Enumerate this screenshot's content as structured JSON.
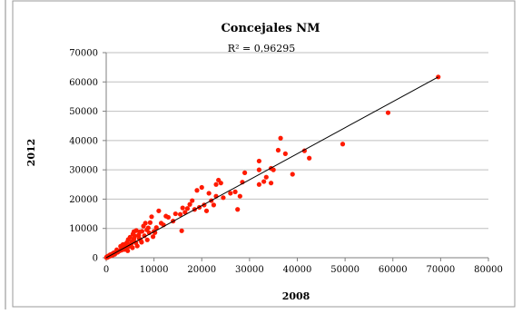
{
  "chart_data": {
    "type": "scatter",
    "title": "Concejales NM",
    "annotation": "R² = 0,96295",
    "xlabel": "2008",
    "ylabel": "2012",
    "xlim": [
      0,
      80000
    ],
    "ylim": [
      0,
      70000
    ],
    "x_ticks": [
      0,
      10000,
      20000,
      30000,
      40000,
      50000,
      60000,
      70000,
      80000
    ],
    "y_ticks": [
      0,
      10000,
      20000,
      30000,
      40000,
      50000,
      60000,
      70000
    ],
    "x_tick_labels": [
      "0",
      "10000",
      "20000",
      "30000",
      "40000",
      "50000",
      "60000",
      "70000",
      "80000"
    ],
    "y_tick_labels": [
      "0",
      "10000",
      "20000",
      "30000",
      "40000",
      "50000",
      "60000",
      "70000"
    ],
    "grid": "horizontal",
    "legend": "none",
    "trendline": {
      "type": "linear",
      "x": [
        0,
        69500
      ],
      "y": [
        0,
        61700
      ]
    },
    "colors": {
      "points": "#ff1a00",
      "trendline": "#000000",
      "grid": "#bfbfbf",
      "frame": "#9a9a9a"
    },
    "series": [
      {
        "values": [
          [
            69500,
            61700
          ],
          [
            59000,
            49500
          ],
          [
            49500,
            38800
          ],
          [
            41500,
            36500
          ],
          [
            42500,
            34000
          ],
          [
            39000,
            28500
          ],
          [
            36500,
            40800
          ],
          [
            37500,
            35500
          ],
          [
            36000,
            36700
          ],
          [
            35000,
            30000
          ],
          [
            34500,
            30500
          ],
          [
            33500,
            27500
          ],
          [
            34500,
            25500
          ],
          [
            32000,
            30000
          ],
          [
            33000,
            26000
          ],
          [
            32000,
            25000
          ],
          [
            32000,
            33000
          ],
          [
            29000,
            29000
          ],
          [
            28500,
            25800
          ],
          [
            28000,
            21000
          ],
          [
            27000,
            22500
          ],
          [
            27500,
            16500
          ],
          [
            26000,
            22000
          ],
          [
            24000,
            25500
          ],
          [
            23500,
            26500
          ],
          [
            24500,
            20500
          ],
          [
            23000,
            25000
          ],
          [
            23000,
            21000
          ],
          [
            22000,
            19500
          ],
          [
            21500,
            22000
          ],
          [
            22500,
            18000
          ],
          [
            21000,
            16000
          ],
          [
            20000,
            24000
          ],
          [
            20500,
            18000
          ],
          [
            19500,
            17200
          ],
          [
            19000,
            23000
          ],
          [
            18500,
            16500
          ],
          [
            18000,
            19500
          ],
          [
            17500,
            18200
          ],
          [
            17000,
            16800
          ],
          [
            16500,
            15500
          ],
          [
            16000,
            17000
          ],
          [
            15500,
            14800
          ],
          [
            15800,
            9200
          ],
          [
            14500,
            15000
          ],
          [
            14000,
            12500
          ],
          [
            13000,
            13800
          ],
          [
            12500,
            14200
          ],
          [
            12000,
            11200
          ],
          [
            11500,
            11800
          ],
          [
            11000,
            16000
          ],
          [
            10500,
            10300
          ],
          [
            10000,
            9000
          ],
          [
            9500,
            14000
          ],
          [
            9200,
            12000
          ],
          [
            9000,
            8500
          ],
          [
            8800,
            10200
          ],
          [
            8500,
            9500
          ],
          [
            8200,
            11800
          ],
          [
            8000,
            7500
          ],
          [
            7800,
            10800
          ],
          [
            7500,
            9000
          ],
          [
            7200,
            6000
          ],
          [
            7000,
            8800
          ],
          [
            6800,
            7700
          ],
          [
            6500,
            4000
          ],
          [
            6300,
            9300
          ],
          [
            6000,
            7400
          ],
          [
            5800,
            6400
          ],
          [
            5600,
            8100
          ],
          [
            5400,
            5500
          ],
          [
            5200,
            4600
          ],
          [
            5000,
            7000
          ],
          [
            4800,
            3900
          ],
          [
            4600,
            6200
          ],
          [
            4400,
            5300
          ],
          [
            4200,
            3600
          ],
          [
            4000,
            4700
          ],
          [
            3800,
            2800
          ],
          [
            3600,
            4000
          ],
          [
            3400,
            3300
          ],
          [
            3200,
            2600
          ],
          [
            3000,
            3900
          ],
          [
            2800,
            2400
          ],
          [
            2600,
            2200
          ],
          [
            2400,
            1900
          ],
          [
            2200,
            2700
          ],
          [
            2000,
            1600
          ],
          [
            1800,
            1200
          ],
          [
            1600,
            1700
          ],
          [
            1400,
            900
          ],
          [
            1200,
            1300
          ],
          [
            1000,
            700
          ],
          [
            800,
            1000
          ],
          [
            600,
            400
          ],
          [
            400,
            600
          ],
          [
            300,
            200
          ],
          [
            200,
            100
          ],
          [
            100,
            300
          ],
          [
            50,
            50
          ],
          [
            7400,
            5300
          ],
          [
            6200,
            5100
          ],
          [
            5500,
            3400
          ],
          [
            9800,
            7200
          ],
          [
            10200,
            8600
          ],
          [
            8600,
            6100
          ],
          [
            6900,
            6600
          ],
          [
            4500,
            2400
          ],
          [
            3500,
            4500
          ],
          [
            5800,
            8900
          ]
        ]
      }
    ]
  }
}
